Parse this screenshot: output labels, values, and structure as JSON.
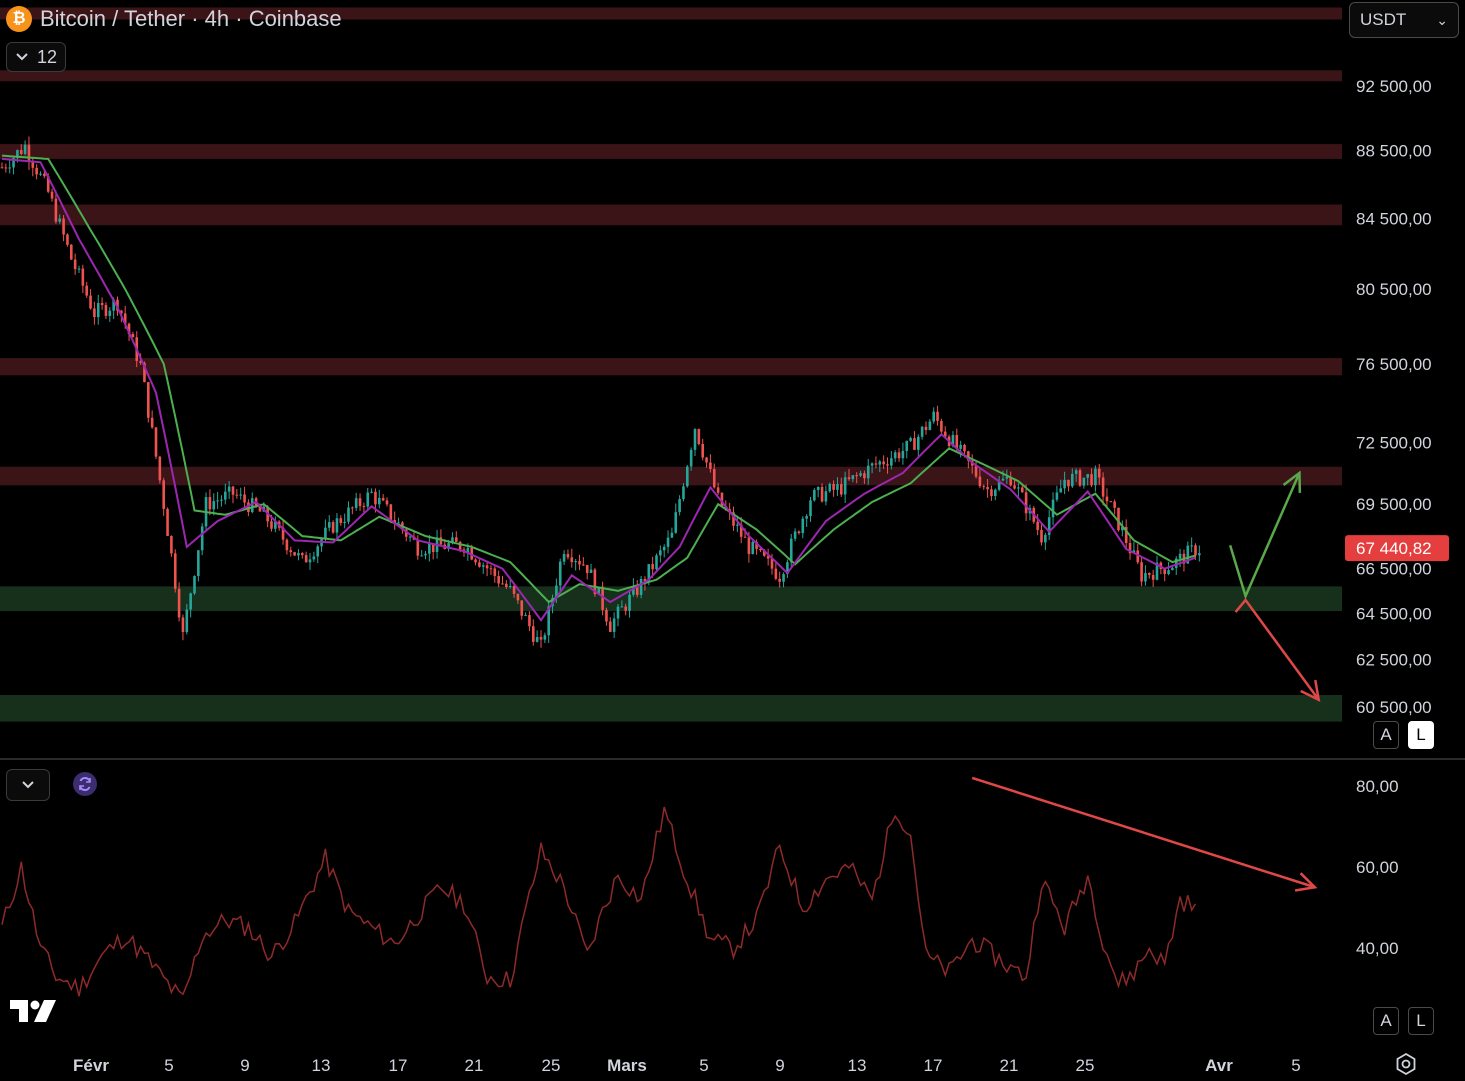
{
  "header": {
    "title": "Bitcoin / Tether · 4h · Coinbase",
    "indicator_count": "12",
    "currency": "USDT",
    "icons": {
      "coin": "bitcoin-icon",
      "toggle": "chevron-down-icon",
      "select": "chevron-down-icon"
    }
  },
  "price_scale": {
    "labels": [
      "92 500,00",
      "88 500,00",
      "84 500,00",
      "80 500,00",
      "76 500,00",
      "72 500,00",
      "69 500,00",
      "66 500,00",
      "64 500,00",
      "62 500,00",
      "60 500,00"
    ],
    "current_price": "67 440,82",
    "buttons": {
      "auto": "A",
      "log": "L"
    }
  },
  "rsi_scale": {
    "labels": [
      "80,00",
      "60,00",
      "40,00"
    ],
    "buttons": {
      "auto": "A",
      "log": "L"
    }
  },
  "time_axis": {
    "labels": [
      "Févr",
      "5",
      "9",
      "13",
      "17",
      "21",
      "25",
      "Mars",
      "5",
      "9",
      "13",
      "17",
      "21",
      "25",
      "Avr",
      "5"
    ]
  },
  "colors": {
    "background": "#000000",
    "resistance_zone": "#3a1417",
    "support_zone": "#16301c",
    "candle_up": "#26a69a",
    "candle_down": "#ef5350",
    "ma_fast": "#9c27b0",
    "ma_slow": "#4caf50",
    "rsi_line": "#8e2a2a",
    "arrow_up": "#5ba84a",
    "arrow_down": "#e04848",
    "price_tag": "#e53e3e"
  },
  "chart_data": {
    "type": "candlestick",
    "symbol": "Bitcoin / Tether",
    "timeframe": "4h",
    "exchange": "Coinbase",
    "price_range": [
      59500,
      96500
    ],
    "last_price": 67440.82,
    "resistance_zones": [
      {
        "low": 96800,
        "high": 97600
      },
      {
        "low": 92800,
        "high": 93500
      },
      {
        "low": 88000,
        "high": 88900
      },
      {
        "low": 84100,
        "high": 85300
      },
      {
        "low": 75900,
        "high": 76800
      },
      {
        "low": 70400,
        "high": 71300
      }
    ],
    "support_zones": [
      {
        "low": 64600,
        "high": 65700
      },
      {
        "low": 59900,
        "high": 61000
      }
    ],
    "close_path": [
      {
        "t": 0,
        "v": 87500
      },
      {
        "t": 6,
        "v": 88800
      },
      {
        "t": 12,
        "v": 86000
      },
      {
        "t": 18,
        "v": 82200
      },
      {
        "t": 24,
        "v": 79200
      },
      {
        "t": 30,
        "v": 79800
      },
      {
        "t": 36,
        "v": 76400
      },
      {
        "t": 42,
        "v": 69500
      },
      {
        "t": 47,
        "v": 63500
      },
      {
        "t": 53,
        "v": 69500
      },
      {
        "t": 60,
        "v": 70000
      },
      {
        "t": 68,
        "v": 69000
      },
      {
        "t": 78,
        "v": 66800
      },
      {
        "t": 86,
        "v": 68500
      },
      {
        "t": 96,
        "v": 70000
      },
      {
        "t": 108,
        "v": 67500
      },
      {
        "t": 120,
        "v": 67600
      },
      {
        "t": 132,
        "v": 65500
      },
      {
        "t": 140,
        "v": 63000
      },
      {
        "t": 146,
        "v": 67500
      },
      {
        "t": 152,
        "v": 66600
      },
      {
        "t": 158,
        "v": 64000
      },
      {
        "t": 166,
        "v": 65800
      },
      {
        "t": 174,
        "v": 68000
      },
      {
        "t": 180,
        "v": 73300
      },
      {
        "t": 186,
        "v": 69700
      },
      {
        "t": 194,
        "v": 67500
      },
      {
        "t": 202,
        "v": 66200
      },
      {
        "t": 210,
        "v": 69800
      },
      {
        "t": 218,
        "v": 70300
      },
      {
        "t": 226,
        "v": 71300
      },
      {
        "t": 236,
        "v": 72300
      },
      {
        "t": 242,
        "v": 73800
      },
      {
        "t": 248,
        "v": 72200
      },
      {
        "t": 256,
        "v": 70200
      },
      {
        "t": 262,
        "v": 70800
      },
      {
        "t": 270,
        "v": 68000
      },
      {
        "t": 276,
        "v": 70700
      },
      {
        "t": 284,
        "v": 70800
      },
      {
        "t": 290,
        "v": 68600
      },
      {
        "t": 296,
        "v": 66200
      },
      {
        "t": 304,
        "v": 66700
      },
      {
        "t": 310,
        "v": 67400
      }
    ],
    "ma_fast_path": [
      {
        "t": 0,
        "v": 88000
      },
      {
        "t": 10,
        "v": 87800
      },
      {
        "t": 20,
        "v": 83300
      },
      {
        "t": 30,
        "v": 79500
      },
      {
        "t": 40,
        "v": 75000
      },
      {
        "t": 48,
        "v": 67500
      },
      {
        "t": 56,
        "v": 68700
      },
      {
        "t": 66,
        "v": 69600
      },
      {
        "t": 76,
        "v": 67800
      },
      {
        "t": 86,
        "v": 67700
      },
      {
        "t": 96,
        "v": 69400
      },
      {
        "t": 108,
        "v": 67800
      },
      {
        "t": 120,
        "v": 67300
      },
      {
        "t": 130,
        "v": 66500
      },
      {
        "t": 140,
        "v": 64200
      },
      {
        "t": 148,
        "v": 66200
      },
      {
        "t": 158,
        "v": 65000
      },
      {
        "t": 168,
        "v": 66000
      },
      {
        "t": 176,
        "v": 67500
      },
      {
        "t": 184,
        "v": 70300
      },
      {
        "t": 194,
        "v": 68000
      },
      {
        "t": 204,
        "v": 66300
      },
      {
        "t": 214,
        "v": 68700
      },
      {
        "t": 224,
        "v": 70000
      },
      {
        "t": 234,
        "v": 71000
      },
      {
        "t": 244,
        "v": 72900
      },
      {
        "t": 252,
        "v": 71500
      },
      {
        "t": 262,
        "v": 70200
      },
      {
        "t": 272,
        "v": 68200
      },
      {
        "t": 282,
        "v": 70100
      },
      {
        "t": 292,
        "v": 67400
      },
      {
        "t": 302,
        "v": 66500
      },
      {
        "t": 310,
        "v": 67000
      }
    ],
    "ma_slow_path": [
      {
        "t": 0,
        "v": 88200
      },
      {
        "t": 12,
        "v": 88000
      },
      {
        "t": 22,
        "v": 84200
      },
      {
        "t": 32,
        "v": 80500
      },
      {
        "t": 42,
        "v": 76500
      },
      {
        "t": 50,
        "v": 69200
      },
      {
        "t": 58,
        "v": 69000
      },
      {
        "t": 68,
        "v": 69500
      },
      {
        "t": 78,
        "v": 68000
      },
      {
        "t": 88,
        "v": 67800
      },
      {
        "t": 98,
        "v": 68900
      },
      {
        "t": 110,
        "v": 68000
      },
      {
        "t": 122,
        "v": 67500
      },
      {
        "t": 132,
        "v": 66800
      },
      {
        "t": 142,
        "v": 65000
      },
      {
        "t": 150,
        "v": 65800
      },
      {
        "t": 160,
        "v": 65500
      },
      {
        "t": 170,
        "v": 66000
      },
      {
        "t": 178,
        "v": 67000
      },
      {
        "t": 186,
        "v": 69500
      },
      {
        "t": 196,
        "v": 68300
      },
      {
        "t": 206,
        "v": 66700
      },
      {
        "t": 216,
        "v": 68300
      },
      {
        "t": 226,
        "v": 69600
      },
      {
        "t": 236,
        "v": 70500
      },
      {
        "t": 246,
        "v": 72200
      },
      {
        "t": 254,
        "v": 71500
      },
      {
        "t": 264,
        "v": 70600
      },
      {
        "t": 274,
        "v": 69000
      },
      {
        "t": 284,
        "v": 70000
      },
      {
        "t": 294,
        "v": 67800
      },
      {
        "t": 304,
        "v": 66800
      },
      {
        "t": 310,
        "v": 67100
      }
    ],
    "candle_count": 312,
    "rsi": {
      "range": [
        25,
        85
      ],
      "path": [
        {
          "t": 0,
          "v": 45
        },
        {
          "t": 5,
          "v": 60
        },
        {
          "t": 10,
          "v": 40
        },
        {
          "t": 14,
          "v": 33
        },
        {
          "t": 20,
          "v": 30
        },
        {
          "t": 26,
          "v": 38
        },
        {
          "t": 32,
          "v": 43
        },
        {
          "t": 38,
          "v": 37
        },
        {
          "t": 44,
          "v": 30
        },
        {
          "t": 47,
          "v": 27
        },
        {
          "t": 52,
          "v": 43
        },
        {
          "t": 58,
          "v": 47
        },
        {
          "t": 64,
          "v": 45
        },
        {
          "t": 70,
          "v": 38
        },
        {
          "t": 76,
          "v": 46
        },
        {
          "t": 84,
          "v": 62
        },
        {
          "t": 90,
          "v": 49
        },
        {
          "t": 96,
          "v": 45
        },
        {
          "t": 102,
          "v": 41
        },
        {
          "t": 108,
          "v": 48
        },
        {
          "t": 114,
          "v": 55
        },
        {
          "t": 120,
          "v": 51
        },
        {
          "t": 126,
          "v": 33
        },
        {
          "t": 132,
          "v": 32
        },
        {
          "t": 136,
          "v": 49
        },
        {
          "t": 140,
          "v": 64
        },
        {
          "t": 146,
          "v": 55
        },
        {
          "t": 152,
          "v": 38
        },
        {
          "t": 156,
          "v": 49
        },
        {
          "t": 160,
          "v": 58
        },
        {
          "t": 166,
          "v": 52
        },
        {
          "t": 172,
          "v": 74
        },
        {
          "t": 178,
          "v": 57
        },
        {
          "t": 184,
          "v": 42
        },
        {
          "t": 190,
          "v": 40
        },
        {
          "t": 196,
          "v": 47
        },
        {
          "t": 202,
          "v": 65
        },
        {
          "t": 208,
          "v": 50
        },
        {
          "t": 214,
          "v": 57
        },
        {
          "t": 220,
          "v": 60
        },
        {
          "t": 226,
          "v": 52
        },
        {
          "t": 232,
          "v": 75
        },
        {
          "t": 236,
          "v": 68
        },
        {
          "t": 240,
          "v": 38
        },
        {
          "t": 246,
          "v": 34
        },
        {
          "t": 252,
          "v": 42
        },
        {
          "t": 258,
          "v": 38
        },
        {
          "t": 262,
          "v": 35
        },
        {
          "t": 266,
          "v": 33
        },
        {
          "t": 270,
          "v": 57
        },
        {
          "t": 276,
          "v": 45
        },
        {
          "t": 282,
          "v": 58
        },
        {
          "t": 286,
          "v": 42
        },
        {
          "t": 290,
          "v": 31
        },
        {
          "t": 294,
          "v": 34
        },
        {
          "t": 298,
          "v": 40
        },
        {
          "t": 302,
          "v": 36
        },
        {
          "t": 306,
          "v": 52
        },
        {
          "t": 310,
          "v": 50
        }
      ]
    },
    "annotations": [
      {
        "type": "arrow",
        "direction": "up",
        "from": {
          "t": 319,
          "v": 66200
        },
        "via": {
          "t": 323,
          "v": 65800
        },
        "to": {
          "t": 337,
          "v": 71000
        }
      },
      {
        "type": "arrow",
        "direction": "down",
        "from": {
          "t": 323,
          "v": 65000
        },
        "to": {
          "t": 342,
          "v": 60800
        }
      },
      {
        "type": "rsi_arrow",
        "direction": "down",
        "from": {
          "t": 252,
          "v": 82
        },
        "to": {
          "t": 341,
          "v": 55
        }
      }
    ]
  }
}
